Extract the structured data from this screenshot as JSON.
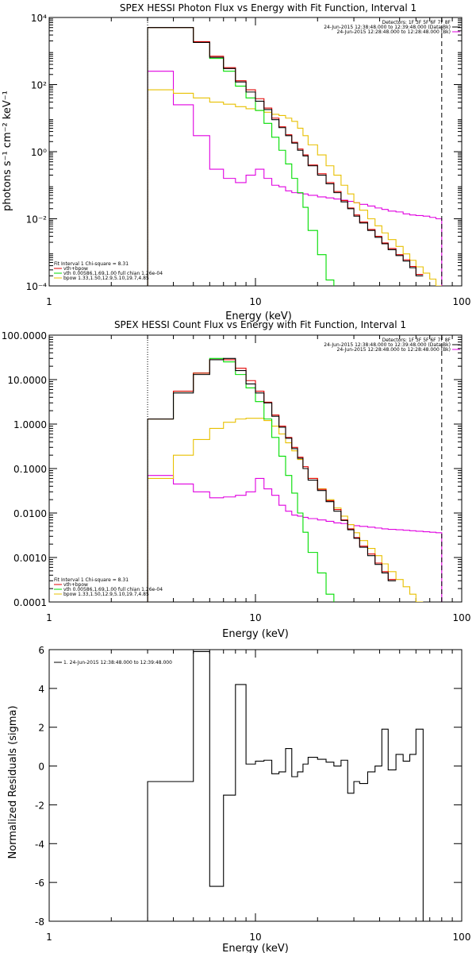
{
  "colors": {
    "data": "#000000",
    "sum": "#e00000",
    "vth": "#00dd00",
    "bpow": "#e8c000",
    "bk": "#e000e0"
  },
  "chart_data": [
    {
      "type": "line",
      "title": "SPEX HESSI Photon Flux vs Energy with Fit Function, Interval 1",
      "xlabel": "Energy (keV)",
      "ylabel": "photons s⁻¹ cm⁻² keV⁻¹",
      "xscale": "log",
      "yscale": "log",
      "xlim": [
        1,
        100
      ],
      "ylim": [
        0.0001,
        10000
      ],
      "x_ticks": [
        "1",
        "10",
        "100"
      ],
      "y_ticks": [
        "10⁻⁴",
        "10⁻²",
        "10⁰",
        "10²",
        "10⁴"
      ],
      "legend_right": [
        "Detectors: 1F 3F 5F 6F 7F 8F",
        "24-Jun-2015 12:38:48.000 to 12:39:48.000 (Data-Bk)",
        "24-Jun-2015 12:28:48.000 to 12:28:48.000 (Bk)"
      ],
      "legend_left": [
        "Fit Interval  1     Chi-square = 8.31",
        "vth+bpow",
        "vth 0.00586,1.69,1.00   full chian 1.26e-04",
        "bpow 1.33,1.50,12.9,5.10,19.7,4.85"
      ],
      "edges": [
        3,
        4,
        5,
        6,
        7,
        8,
        9,
        10,
        11,
        12,
        13,
        14,
        15,
        16,
        17,
        18,
        20,
        22,
        24,
        26,
        28,
        30,
        32,
        35,
        38,
        41,
        44,
        48,
        52,
        56,
        60,
        65,
        70,
        75,
        80,
        90,
        100
      ],
      "series": [
        {
          "name": "Data-Bk",
          "color_key": "data",
          "values": [
            5000,
            5000,
            1800,
            650,
            300,
            120,
            60,
            32,
            18,
            9,
            5.2,
            3,
            1.8,
            1.1,
            0.75,
            0.38,
            0.2,
            0.11,
            0.06,
            0.032,
            0.02,
            0.012,
            0.0075,
            0.0045,
            0.0028,
            0.0018,
            0.0012,
            0.0008,
            0.00055,
            0.00035,
            0.0002
          ]
        },
        {
          "name": "vth+bpow",
          "color_key": "sum",
          "values": [
            5000,
            5000,
            1900,
            700,
            320,
            130,
            70,
            38,
            20,
            10,
            5.5,
            3.2,
            1.9,
            1.2,
            0.8,
            0.4,
            0.22,
            0.12,
            0.065,
            0.035,
            0.021,
            0.013,
            0.008,
            0.0048,
            0.003,
            0.0019,
            0.0013,
            0.00085,
            0.0006,
            0.00038,
            0.00022
          ]
        },
        {
          "name": "vth",
          "color_key": "vth",
          "values": [
            5000,
            5000,
            1800,
            600,
            250,
            90,
            40,
            17,
            7,
            2.7,
            1.1,
            0.43,
            0.16,
            0.06,
            0.022,
            0.0045,
            0.00085,
            0.00015
          ]
        },
        {
          "name": "bpow",
          "color_key": "bpow",
          "values": [
            70,
            55,
            40,
            30,
            26,
            22,
            19,
            17,
            15,
            13,
            12,
            10,
            8,
            5,
            3,
            1.6,
            0.8,
            0.38,
            0.2,
            0.1,
            0.055,
            0.03,
            0.018,
            0.01,
            0.0062,
            0.0038,
            0.0024,
            0.0015,
            0.0009,
            0.00058,
            0.00037,
            0.00024,
            0.00016,
            0.0001
          ]
        },
        {
          "name": "Bk",
          "color_key": "bk",
          "values": [
            250,
            25,
            3,
            0.3,
            0.16,
            0.12,
            0.2,
            0.3,
            0.16,
            0.1,
            0.09,
            0.068,
            0.06,
            0.058,
            0.055,
            0.05,
            0.045,
            0.042,
            0.039,
            0.036,
            0.033,
            0.03,
            0.027,
            0.024,
            0.021,
            0.019,
            0.017,
            0.016,
            0.014,
            0.013,
            0.0125,
            0.012,
            0.011,
            0.01
          ]
        }
      ],
      "vlines": [
        {
          "x": 3,
          "style": "dotted"
        },
        {
          "x": 80,
          "style": "dashed"
        }
      ]
    },
    {
      "type": "line",
      "title": "SPEX HESSI Count Flux vs Energy with Fit Function, Interval 1",
      "xlabel": "Energy (keV)",
      "ylabel": "",
      "xscale": "log",
      "yscale": "log",
      "xlim": [
        1,
        100
      ],
      "ylim": [
        0.0001,
        100
      ],
      "x_ticks": [
        "1",
        "10",
        "100"
      ],
      "y_ticks": [
        "0.0001",
        "0.0010",
        "0.0100",
        "0.1000",
        "1.0000",
        "10.0000",
        "100.0000"
      ],
      "legend_right": [
        "Detectors: 1F 3F 5F 6F 7F 8F",
        "24-Jun-2015 12:38:48.000 to 12:39:48.000 (Data-Bk)",
        "24-Jun-2015 12:28:48.000 to 12:28:48.000 (Bk)"
      ],
      "legend_left": [
        "Fit Interval  1     Chi-square = 8.31",
        "vth+bpow",
        "vth 0.00586,1.69,1.00   full chian 1.26e-04",
        "bpow 1.33,1.50,12.9,5.10,19.7,4.85"
      ],
      "edges": [
        3,
        4,
        5,
        6,
        7,
        8,
        9,
        10,
        11,
        12,
        13,
        14,
        15,
        16,
        17,
        18,
        20,
        22,
        24,
        26,
        28,
        30,
        32,
        35,
        38,
        41,
        44,
        48,
        52,
        56,
        60,
        65,
        70,
        75,
        80,
        90,
        100
      ],
      "series": [
        {
          "name": "Data-Bk",
          "color_key": "data",
          "values": [
            1.3,
            5.0,
            13,
            28,
            30,
            16,
            8,
            5,
            3,
            1.5,
            0.85,
            0.48,
            0.28,
            0.17,
            0.1,
            0.055,
            0.032,
            0.018,
            0.011,
            0.0068,
            0.0042,
            0.0027,
            0.0017,
            0.0011,
            0.0007,
            0.00045,
            0.0003
          ]
        },
        {
          "name": "vth+bpow",
          "color_key": "sum",
          "values": [
            1.3,
            5.5,
            14,
            28,
            28,
            18,
            9.5,
            5.5,
            3.1,
            1.6,
            0.9,
            0.5,
            0.3,
            0.18,
            0.11,
            0.06,
            0.034,
            0.019,
            0.012,
            0.007,
            0.0044,
            0.0028,
            0.0018,
            0.0012,
            0.00075,
            0.00048,
            0.00032
          ]
        },
        {
          "name": "vth",
          "color_key": "vth",
          "values": [
            1.3,
            5.5,
            14,
            30,
            25,
            13,
            6.5,
            3.2,
            1.3,
            0.5,
            0.19,
            0.07,
            0.028,
            0.01,
            0.0037,
            0.0013,
            0.00045,
            0.00015
          ]
        },
        {
          "name": "bpow",
          "color_key": "bpow",
          "values": [
            0.06,
            0.2,
            0.45,
            0.8,
            1.1,
            1.3,
            1.35,
            1.35,
            1.2,
            0.9,
            0.6,
            0.38,
            0.25,
            0.16,
            0.1,
            0.06,
            0.035,
            0.02,
            0.013,
            0.0085,
            0.0055,
            0.0036,
            0.0024,
            0.0016,
            0.0011,
            0.00072,
            0.00048,
            0.00032,
            0.00022,
            0.00015,
            0.0001
          ]
        },
        {
          "name": "Bk",
          "color_key": "bk",
          "values": [
            0.07,
            0.045,
            0.03,
            0.022,
            0.023,
            0.025,
            0.03,
            0.06,
            0.035,
            0.025,
            0.015,
            0.011,
            0.009,
            0.0085,
            0.008,
            0.0075,
            0.007,
            0.0065,
            0.006,
            0.0058,
            0.0055,
            0.0052,
            0.005,
            0.0048,
            0.0046,
            0.0044,
            0.0043,
            0.0042,
            0.0041,
            0.004,
            0.0039,
            0.0038,
            0.0037,
            0.0036
          ]
        }
      ],
      "vlines": [
        {
          "x": 3,
          "style": "dotted"
        },
        {
          "x": 80,
          "style": "dashed"
        }
      ]
    },
    {
      "type": "line",
      "title": "",
      "xlabel": "Energy (keV)",
      "ylabel": "Normalized Residuals (sigma)",
      "xscale": "log",
      "yscale": "linear",
      "xlim": [
        1,
        100
      ],
      "ylim": [
        -8,
        6
      ],
      "x_ticks": [
        "1",
        "10",
        "100"
      ],
      "y_ticks": [
        "-8",
        "-6",
        "-4",
        "-2",
        "0",
        "2",
        "4",
        "6"
      ],
      "legend_left": [
        "1. 24-Jun-2015 12:38:48.000 to 12:39:48.000"
      ],
      "edges": [
        3,
        4,
        5,
        6,
        7,
        8,
        9,
        10,
        11,
        12,
        13,
        14,
        15,
        16,
        17,
        18,
        20,
        22,
        24,
        26,
        28,
        30,
        32,
        35,
        38,
        41,
        44,
        48,
        52,
        56,
        60,
        65,
        70,
        75,
        80
      ],
      "series": [
        {
          "name": "1. 24-Jun-2015 12:38:48.000 to 12:39:48.000",
          "color_key": "data",
          "values": [
            -0.8,
            -0.8,
            5.9,
            -6.2,
            -1.5,
            4.2,
            0.1,
            0.25,
            0.3,
            -0.4,
            -0.3,
            0.9,
            -0.55,
            -0.3,
            0.1,
            0.45,
            0.35,
            0.2,
            0.0,
            0.3,
            -1.4,
            -0.8,
            -0.9,
            -0.3,
            0.0,
            1.9,
            -0.2,
            0.6,
            0.25,
            0.6,
            1.9
          ]
        }
      ],
      "vlines": []
    }
  ]
}
